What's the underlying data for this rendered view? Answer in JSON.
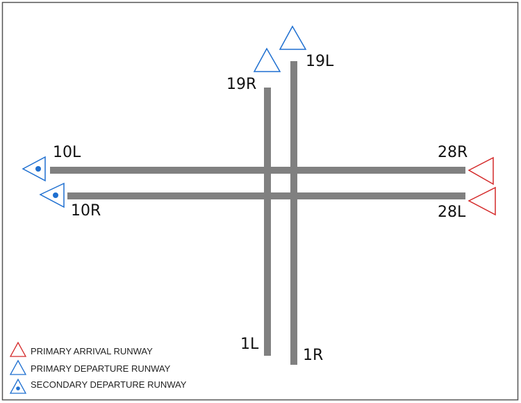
{
  "colors": {
    "frame": "#555555",
    "runway": "#808080",
    "arrival": "#d42a2a",
    "departure": "#1e6fd0",
    "text": "#111111"
  },
  "runway_labels": {
    "r10L": "10L",
    "r10R": "10R",
    "r28R": "28R",
    "r28L": "28L",
    "r19L": "19L",
    "r19R": "19R",
    "r1L": "1L",
    "r1R": "1R"
  },
  "legend": {
    "primary_arrival": "PRIMARY ARRIVAL RUNWAY",
    "primary_departure": "PRIMARY DEPARTURE RUNWAY",
    "secondary_departure": "SECONDARY DEPARTURE RUNWAY"
  },
  "icons": {
    "primary_arrival": "triangle-outline-red",
    "primary_departure": "triangle-outline-blue",
    "secondary_departure": "triangle-outline-blue-with-dot"
  }
}
